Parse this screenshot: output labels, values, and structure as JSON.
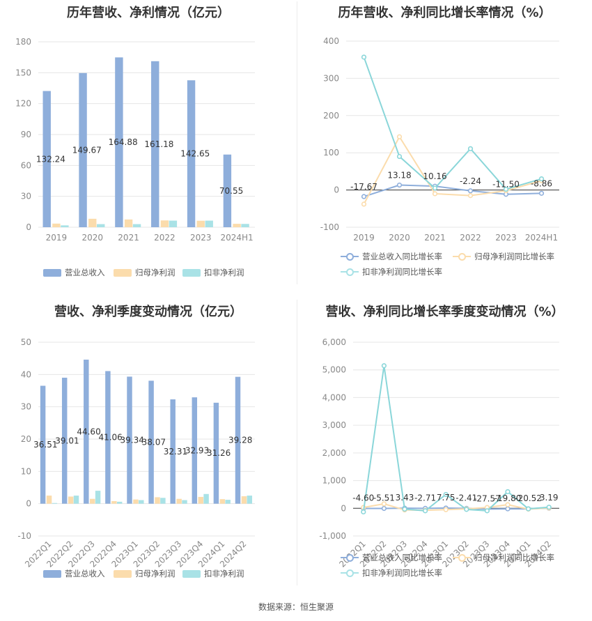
{
  "colors": {
    "revenue": "#8eaedb",
    "parent_profit": "#fbdcac",
    "deducted_profit": "#a9e2e6",
    "line_revenue": "#8eaedb",
    "line_parent": "#fbdcac",
    "line_deducted": "#8ad6d9"
  },
  "source": "数据来源：恒生聚源",
  "chart_data": [
    {
      "id": "annual-bar",
      "type": "bar",
      "title": "历年营收、净利情况（亿元）",
      "categories": [
        "2019",
        "2020",
        "2021",
        "2022",
        "2023",
        "2024H1"
      ],
      "ylim": [
        0,
        180
      ],
      "yticks": [
        0,
        30,
        60,
        90,
        120,
        150,
        180
      ],
      "grid": true,
      "legend_position": "bottom",
      "series": [
        {
          "name": "营业总收入",
          "values": [
            132.24,
            149.67,
            164.88,
            161.18,
            142.65,
            70.55
          ],
          "color_key": "revenue",
          "labels": [
            "132.24",
            "149.67",
            "164.88",
            "161.18",
            "142.65",
            "70.55"
          ]
        },
        {
          "name": "归母净利润",
          "values": [
            3.5,
            8.2,
            7.5,
            6.6,
            6.3,
            3.3
          ],
          "color_key": "parent_profit"
        },
        {
          "name": "扣非净利润",
          "values": [
            1.8,
            3.0,
            3.0,
            6.4,
            6.4,
            3.2
          ],
          "color_key": "deducted_profit"
        }
      ]
    },
    {
      "id": "annual-line",
      "type": "line",
      "title": "历年营收、净利同比增长率情况（%）",
      "categories": [
        "2019",
        "2020",
        "2021",
        "2022",
        "2023",
        "2024H1"
      ],
      "ylim": [
        -100,
        400
      ],
      "yticks": [
        -100,
        0,
        100,
        200,
        300,
        400
      ],
      "grid": true,
      "legend_position": "bottom",
      "series": [
        {
          "name": "营业总收入同比增长率",
          "values": [
            -17.67,
            13.18,
            10.16,
            -2.24,
            -11.5,
            -8.86
          ],
          "color_key": "line_revenue",
          "labels": [
            "-17.67",
            "13.18",
            "10.16",
            "-2.24",
            "-11.50",
            "-8.86"
          ]
        },
        {
          "name": "归母净利润同比增长率",
          "values": [
            -38,
            143,
            -10,
            -15,
            -2,
            25
          ],
          "color_key": "line_parent"
        },
        {
          "name": "扣非净利润同比增长率",
          "values": [
            357,
            90,
            5,
            111,
            2,
            30
          ],
          "color_key": "line_deducted"
        }
      ]
    },
    {
      "id": "quarter-bar",
      "type": "bar",
      "title": "营收、净利季度变动情况（亿元）",
      "categories": [
        "2022Q1",
        "2022Q2",
        "2022Q3",
        "2022Q4",
        "2023Q1",
        "2023Q2",
        "2023Q3",
        "2023Q4",
        "2024Q1",
        "2024Q2"
      ],
      "ylim": [
        -10,
        50
      ],
      "yticks": [
        -10,
        0,
        10,
        20,
        30,
        40,
        50
      ],
      "grid": true,
      "legend_position": "bottom",
      "series": [
        {
          "name": "营业总收入",
          "values": [
            36.51,
            39.01,
            44.6,
            41.06,
            39.34,
            38.07,
            32.31,
            32.93,
            31.26,
            39.28
          ],
          "color_key": "revenue",
          "labels": [
            "36.51",
            "39.01",
            "44.60",
            "41.06",
            "39.34",
            "38.07",
            "32.31",
            "32.93",
            "31.26",
            "39.28"
          ]
        },
        {
          "name": "归母净利润",
          "values": [
            2.5,
            2.2,
            1.5,
            0.8,
            1.3,
            2.0,
            1.5,
            2.1,
            1.4,
            2.3
          ],
          "color_key": "parent_profit"
        },
        {
          "name": "扣非净利润",
          "values": [
            0.2,
            2.5,
            4.0,
            0.6,
            1.1,
            1.8,
            1.1,
            3.0,
            1.2,
            2.5
          ],
          "color_key": "deducted_profit"
        }
      ]
    },
    {
      "id": "quarter-line",
      "type": "line",
      "title": "营收、净利同比增长率季度变动情况（%）",
      "categories": [
        "2022Q1",
        "2022Q2",
        "2022Q3",
        "2022Q4",
        "2023Q1",
        "2023Q2",
        "2023Q3",
        "2023Q4",
        "2024Q1",
        "2024Q2"
      ],
      "ylim": [
        -1000,
        6000
      ],
      "yticks": [
        -1000,
        0,
        1000,
        2000,
        3000,
        4000,
        5000,
        6000
      ],
      "ytick_labels": [
        "-1,000",
        "0",
        "1,000",
        "2,000",
        "3,000",
        "4,000",
        "5,000",
        "6,000"
      ],
      "grid": true,
      "legend_position": "bottom",
      "series": [
        {
          "name": "营业总收入同比增长率",
          "values": [
            -4.6,
            -5.51,
            3.43,
            -2.71,
            7.75,
            -2.41,
            -27.57,
            -19.8,
            -20.52,
            3.19
          ],
          "color_key": "line_revenue",
          "labels": [
            "-4.60",
            "-5.51",
            "3.43",
            "-2.71",
            "7.75",
            "-2.41",
            "-27.57",
            "-19.80",
            "-20.52",
            "3.19"
          ]
        },
        {
          "name": "归母净利润同比增长率",
          "values": [
            30,
            160,
            -60,
            -70,
            -50,
            -20,
            30,
            130,
            -30,
            10
          ],
          "color_key": "line_parent"
        },
        {
          "name": "扣非净利润同比增长率",
          "values": [
            -130,
            5150,
            -30,
            -90,
            500,
            -40,
            -90,
            600,
            -20,
            40
          ],
          "color_key": "line_deducted"
        }
      ]
    }
  ]
}
